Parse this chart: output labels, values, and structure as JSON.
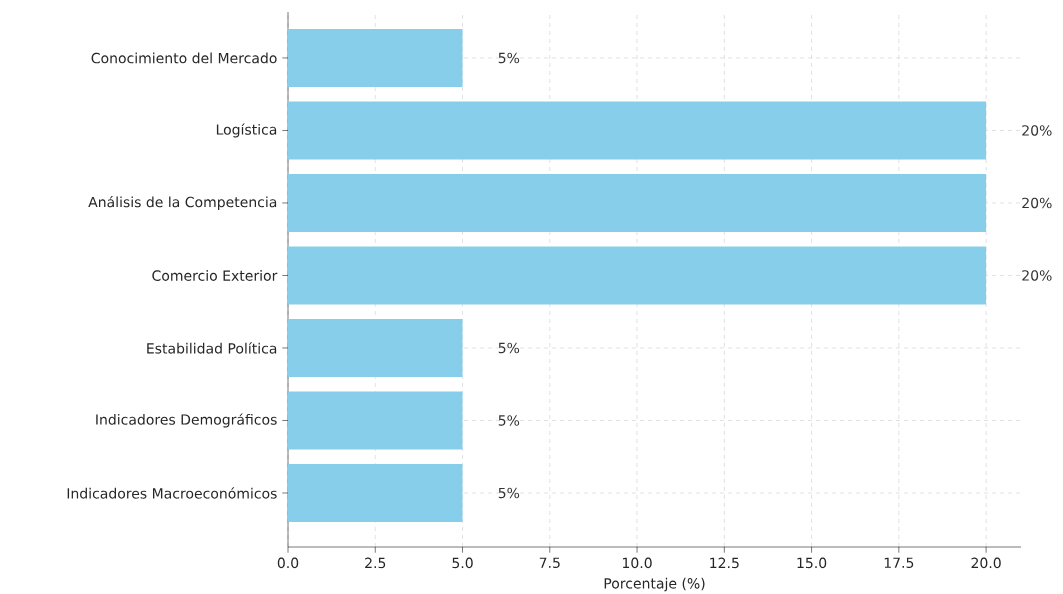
{
  "chart_data": {
    "type": "bar",
    "orientation": "horizontal",
    "xlabel": "Porcentaje (%)",
    "categories": [
      "Conocimiento del Mercado",
      "Logística",
      "Análisis de la Competencia",
      "Comercio Exterior",
      "Estabilidad Política",
      "Indicadores Demográficos",
      "Indicadores Macroeconómicos"
    ],
    "values": [
      5,
      20,
      20,
      20,
      5,
      5,
      5
    ],
    "value_labels": [
      "5%",
      "20%",
      "20%",
      "20%",
      "5%",
      "5%",
      "5%"
    ],
    "color": "#87ceeb",
    "xlim": [
      0,
      21
    ],
    "xticks": [
      {
        "value": 0,
        "label": "0.0"
      },
      {
        "value": 2.5,
        "label": "2.5"
      },
      {
        "value": 5,
        "label": "5.0"
      },
      {
        "value": 7.5,
        "label": "7.5"
      },
      {
        "value": 10,
        "label": "10.0"
      },
      {
        "value": 12.5,
        "label": "12.5"
      },
      {
        "value": 15,
        "label": "15.0"
      },
      {
        "value": 17.5,
        "label": "17.5"
      },
      {
        "value": 20,
        "label": "20.0"
      }
    ],
    "grid": true
  }
}
